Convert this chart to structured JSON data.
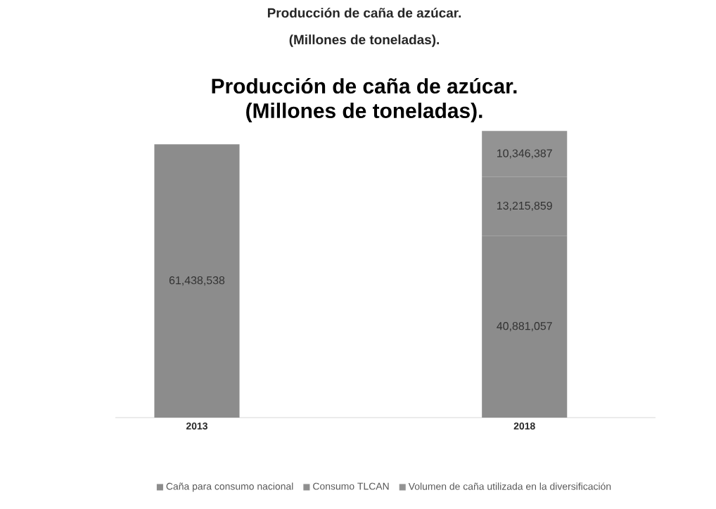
{
  "chart_data": {
    "type": "bar",
    "stacked": true,
    "title": "Producción de caña de azúcar.",
    "subtitle": "(Millones de toneladas).",
    "annotations": [
      "Producción de caña de azúcar.",
      "(Millones de toneladas)."
    ],
    "categories": [
      "2013",
      "2018"
    ],
    "series": [
      {
        "name": "Caña para consumo nacional",
        "color": "#8c8c8c",
        "values": [
          61438538,
          40881057
        ],
        "value_labels": [
          "61,438,538",
          "40,881,057"
        ]
      },
      {
        "name": "Consumo TLCAN",
        "color": "#8f8f8f",
        "values": [
          null,
          13215859
        ],
        "value_labels": [
          null,
          "13,215,859"
        ]
      },
      {
        "name": "Volumen de caña utilizada en la diversificación",
        "color": "#939393",
        "values": [
          null,
          10346387
        ],
        "value_labels": [
          null,
          "10,346,387"
        ]
      }
    ],
    "legend": "bottom"
  }
}
